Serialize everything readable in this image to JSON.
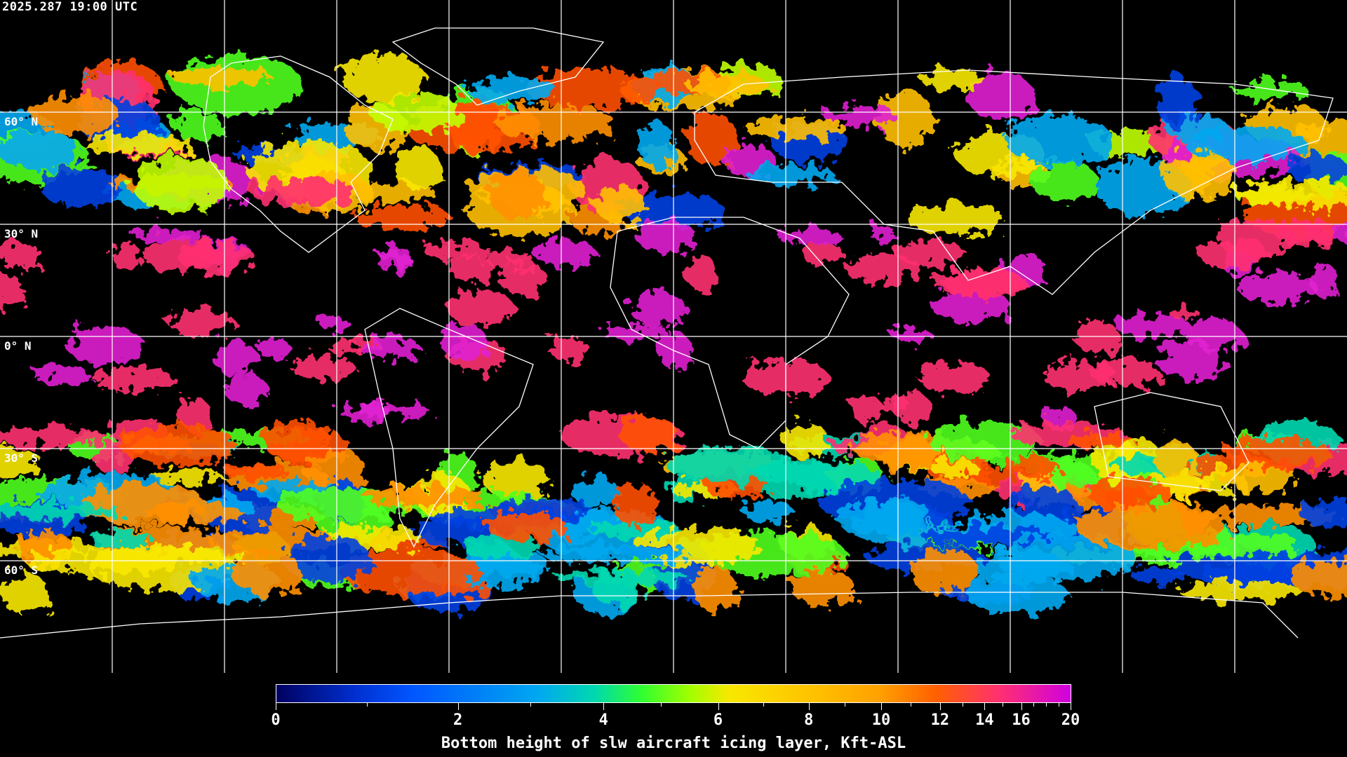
{
  "header": {
    "timestamp": "2025.287 19:00 UTC"
  },
  "map": {
    "projection": "equirectangular",
    "grid_spacing_deg": 30,
    "latitude_labels": [
      "60° N",
      "30° N",
      "0° N",
      "30° S",
      "60° S"
    ],
    "coastline_color": "#ffffff",
    "grid_color": "#ffffff",
    "background_color": "#000000"
  },
  "colorbar": {
    "title": "Bottom height of slw aircraft icing layer, Kft-ASL",
    "range": [
      0,
      20
    ],
    "tick_labels": [
      "0",
      "2",
      "4",
      "6",
      "8",
      "10",
      "12",
      "14",
      "16",
      "20"
    ],
    "colors": [
      "#000060",
      "#0055ff",
      "#00a8f0",
      "#30ff30",
      "#f8e800",
      "#ffa000",
      "#ff6000",
      "#ff3070",
      "#d000e0"
    ]
  }
}
